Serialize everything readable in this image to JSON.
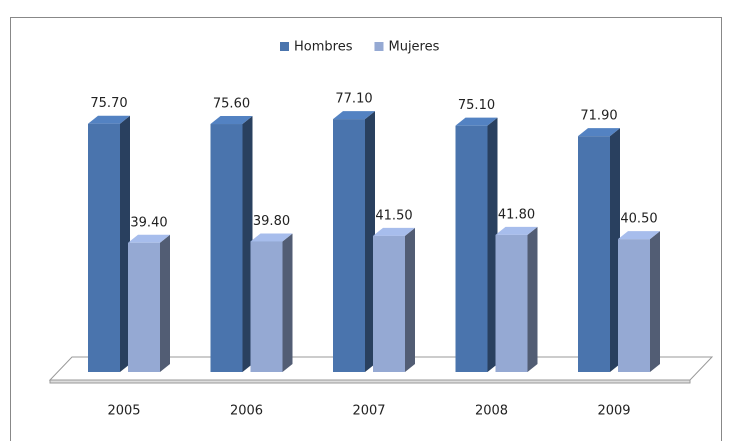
{
  "chart_data": {
    "type": "bar3d",
    "categories": [
      "2005",
      "2006",
      "2007",
      "2008",
      "2009"
    ],
    "series": [
      {
        "name": "Hombres",
        "color": "#4a74ad",
        "values": [
          75.7,
          75.6,
          77.1,
          75.1,
          71.9
        ],
        "value_labels": [
          "75.70",
          "75.60",
          "77.10",
          "75.10",
          "71.90"
        ]
      },
      {
        "name": "Mujeres",
        "color": "#95a9d3",
        "values": [
          39.4,
          39.8,
          41.5,
          41.8,
          40.5
        ],
        "value_labels": [
          "39.40",
          "39.80",
          "41.50",
          "41.80",
          "40.50"
        ]
      }
    ],
    "legend": "top"
  }
}
